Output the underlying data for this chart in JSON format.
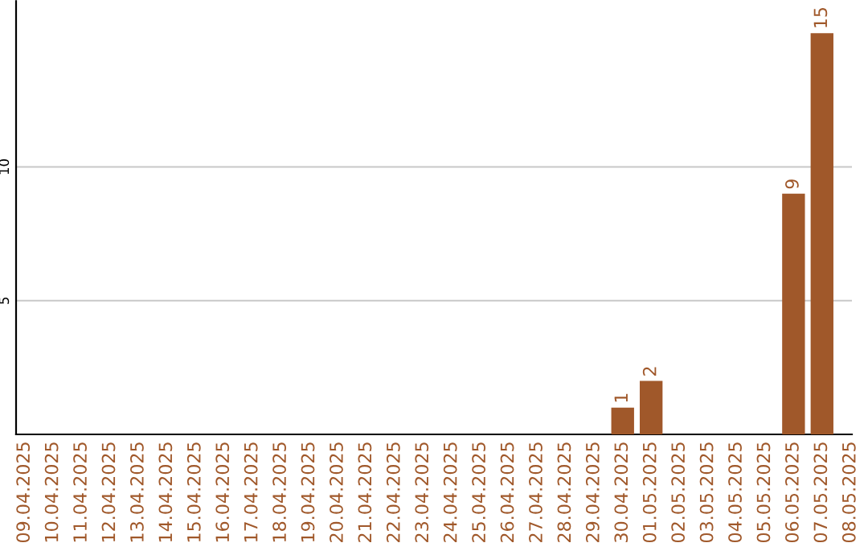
{
  "chart_data": {
    "type": "bar",
    "categories": [
      "09.04.2025",
      "10.04.2025",
      "11.04.2025",
      "12.04.2025",
      "13.04.2025",
      "14.04.2025",
      "15.04.2025",
      "16.04.2025",
      "17.04.2025",
      "18.04.2025",
      "19.04.2025",
      "20.04.2025",
      "21.04.2025",
      "22.04.2025",
      "23.04.2025",
      "24.04.2025",
      "25.04.2025",
      "26.04.2025",
      "27.04.2025",
      "28.04.2025",
      "29.04.2025",
      "30.04.2025",
      "01.05.2025",
      "02.05.2025",
      "03.05.2025",
      "04.05.2025",
      "05.05.2025",
      "06.05.2025",
      "07.05.2025",
      "08.05.2025"
    ],
    "values": [
      0,
      0,
      0,
      0,
      0,
      0,
      0,
      0,
      0,
      0,
      0,
      0,
      0,
      0,
      0,
      0,
      0,
      0,
      0,
      0,
      0,
      1,
      2,
      0,
      0,
      0,
      0,
      9,
      15,
      0
    ],
    "value_labels": [
      null,
      null,
      null,
      null,
      null,
      null,
      null,
      null,
      null,
      null,
      null,
      null,
      null,
      null,
      null,
      null,
      null,
      null,
      null,
      null,
      null,
      "1",
      "2",
      null,
      null,
      null,
      null,
      "9",
      "15",
      null
    ],
    "color": "#a0582a",
    "ylim": [
      0,
      16.2
    ],
    "yticks": [
      5,
      10
    ],
    "grid": "y",
    "legend": false
  }
}
